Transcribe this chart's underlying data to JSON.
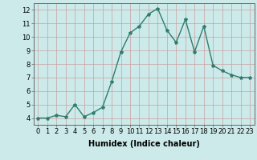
{
  "x": [
    0,
    1,
    2,
    3,
    4,
    5,
    6,
    7,
    8,
    9,
    10,
    11,
    12,
    13,
    14,
    15,
    16,
    17,
    18,
    19,
    20,
    21,
    22,
    23
  ],
  "y": [
    4.0,
    4.0,
    4.2,
    4.1,
    5.0,
    4.1,
    4.4,
    4.8,
    6.7,
    8.9,
    10.3,
    10.8,
    11.7,
    12.1,
    10.5,
    9.6,
    11.3,
    8.9,
    10.8,
    7.9,
    7.5,
    7.2,
    7.0,
    7.0
  ],
  "line_color": "#2e7d6e",
  "marker": "*",
  "marker_size": 3,
  "bg_color": "#cceaea",
  "grid_color": "#c8a0a0",
  "xlabel": "Humidex (Indice chaleur)",
  "xlabel_fontsize": 7,
  "xlim": [
    -0.5,
    23.5
  ],
  "ylim": [
    3.5,
    12.5
  ],
  "yticks": [
    4,
    5,
    6,
    7,
    8,
    9,
    10,
    11,
    12
  ],
  "xticks": [
    0,
    1,
    2,
    3,
    4,
    5,
    6,
    7,
    8,
    9,
    10,
    11,
    12,
    13,
    14,
    15,
    16,
    17,
    18,
    19,
    20,
    21,
    22,
    23
  ],
  "tick_fontsize": 6,
  "line_width": 1.0
}
